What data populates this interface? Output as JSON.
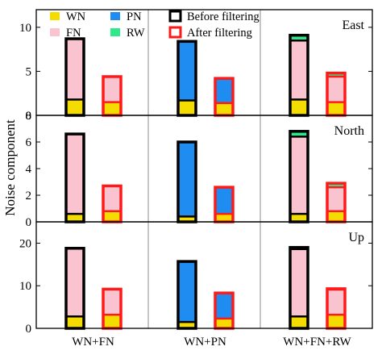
{
  "colors": {
    "WN": "#f5dc00",
    "FN": "#f9c4cf",
    "PN": "#1e8cf0",
    "RW": "#2ee88a",
    "before": "#000000",
    "after": "#ff1a1a",
    "divider": "#8c8c8c"
  },
  "chart_data": {
    "type": "bar",
    "stacked": true,
    "ylabel": "Noise component",
    "categories": [
      "WN+FN",
      "WN+PN",
      "WN+FN+RW"
    ],
    "legend": {
      "placement": "top-left",
      "entries": [
        {
          "key": "WN",
          "label": "WN"
        },
        {
          "key": "PN",
          "label": "PN"
        },
        {
          "key": "before",
          "label": "Before filtering"
        },
        {
          "key": "FN",
          "label": "FN"
        },
        {
          "key": "RW",
          "label": "RW"
        },
        {
          "key": "after",
          "label": "After filtering"
        }
      ]
    },
    "panels": [
      {
        "title": "East",
        "ylim": [
          0,
          12
        ],
        "yticks": [
          0,
          5,
          10
        ],
        "groups": [
          {
            "category": "WN+FN",
            "before": [
              {
                "component": "WN",
                "value": 1.8
              },
              {
                "component": "FN",
                "value": 6.9
              }
            ],
            "after": [
              {
                "component": "WN",
                "value": 1.5
              },
              {
                "component": "FN",
                "value": 2.9
              }
            ]
          },
          {
            "category": "WN+PN",
            "before": [
              {
                "component": "WN",
                "value": 1.7
              },
              {
                "component": "PN",
                "value": 6.7
              }
            ],
            "after": [
              {
                "component": "WN",
                "value": 1.4
              },
              {
                "component": "PN",
                "value": 2.8
              }
            ]
          },
          {
            "category": "WN+FN+RW",
            "before": [
              {
                "component": "WN",
                "value": 1.8
              },
              {
                "component": "FN",
                "value": 6.7
              },
              {
                "component": "RW",
                "value": 0.6
              }
            ],
            "after": [
              {
                "component": "WN",
                "value": 1.5
              },
              {
                "component": "FN",
                "value": 2.9
              },
              {
                "component": "RW",
                "value": 0.4
              }
            ]
          }
        ]
      },
      {
        "title": "North",
        "ylim": [
          0,
          8
        ],
        "yticks": [
          0,
          2,
          4,
          6,
          8
        ],
        "groups": [
          {
            "category": "WN+FN",
            "before": [
              {
                "component": "WN",
                "value": 0.6
              },
              {
                "component": "FN",
                "value": 6.0
              }
            ],
            "after": [
              {
                "component": "WN",
                "value": 0.8
              },
              {
                "component": "FN",
                "value": 1.9
              }
            ]
          },
          {
            "category": "WN+PN",
            "before": [
              {
                "component": "WN",
                "value": 0.4
              },
              {
                "component": "PN",
                "value": 5.6
              }
            ],
            "after": [
              {
                "component": "WN",
                "value": 0.6
              },
              {
                "component": "PN",
                "value": 2.0
              }
            ]
          },
          {
            "category": "WN+FN+RW",
            "before": [
              {
                "component": "WN",
                "value": 0.6
              },
              {
                "component": "FN",
                "value": 5.8
              },
              {
                "component": "RW",
                "value": 0.4
              }
            ],
            "after": [
              {
                "component": "WN",
                "value": 0.8
              },
              {
                "component": "FN",
                "value": 1.8
              },
              {
                "component": "RW",
                "value": 0.3
              }
            ]
          }
        ]
      },
      {
        "title": "Up",
        "ylim": [
          0,
          25
        ],
        "yticks": [
          0,
          10,
          20
        ],
        "groups": [
          {
            "category": "WN+FN",
            "before": [
              {
                "component": "WN",
                "value": 2.8
              },
              {
                "component": "FN",
                "value": 16.0
              }
            ],
            "after": [
              {
                "component": "WN",
                "value": 3.2
              },
              {
                "component": "FN",
                "value": 6.0
              }
            ]
          },
          {
            "category": "WN+PN",
            "before": [
              {
                "component": "WN",
                "value": 1.5
              },
              {
                "component": "PN",
                "value": 14.2
              }
            ],
            "after": [
              {
                "component": "WN",
                "value": 2.3
              },
              {
                "component": "PN",
                "value": 6.0
              }
            ]
          },
          {
            "category": "WN+FN+RW",
            "before": [
              {
                "component": "WN",
                "value": 2.8
              },
              {
                "component": "FN",
                "value": 15.8
              },
              {
                "component": "RW",
                "value": 0.4
              }
            ],
            "after": [
              {
                "component": "WN",
                "value": 3.2
              },
              {
                "component": "FN",
                "value": 5.9
              },
              {
                "component": "RW",
                "value": 0.2
              }
            ]
          }
        ]
      }
    ]
  }
}
